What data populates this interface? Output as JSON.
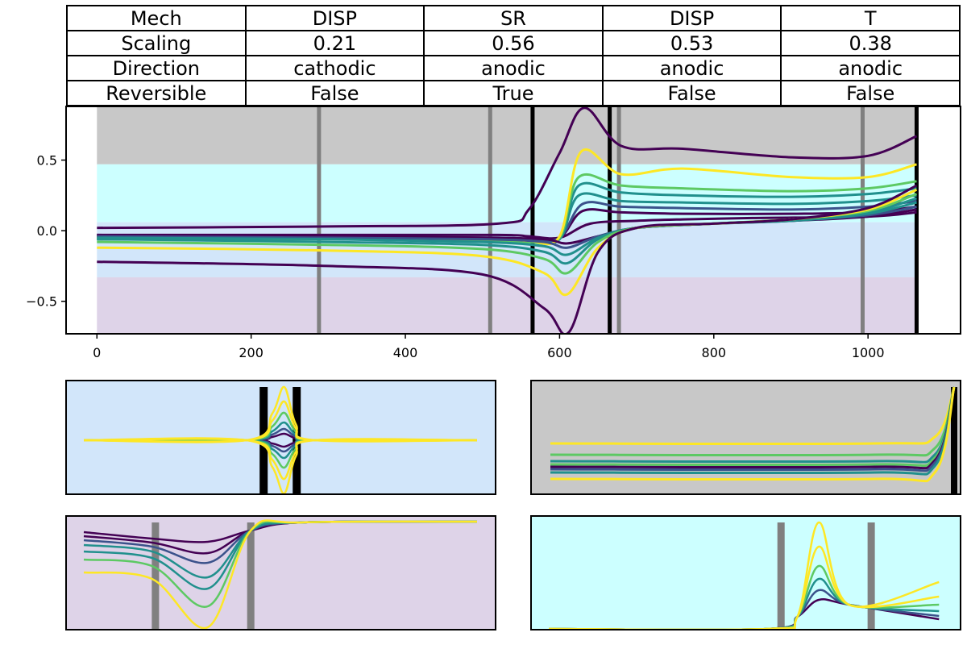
{
  "table": {
    "rows": [
      [
        "Mech",
        "DISP",
        "SR",
        "DISP",
        "T"
      ],
      [
        "Scaling",
        "0.21",
        "0.56",
        "0.53",
        "0.38"
      ],
      [
        "Direction",
        "cathodic",
        "anodic",
        "anodic",
        "anodic"
      ],
      [
        "Reversible",
        "False",
        "True",
        "False",
        "False"
      ]
    ]
  },
  "chart_data": [
    {
      "type": "line",
      "title": "",
      "xlabel": "",
      "ylabel": "",
      "xlim": [
        -40,
        1120
      ],
      "ylim": [
        -0.73,
        0.88
      ],
      "x_ticks": [
        0,
        200,
        400,
        600,
        800,
        1000
      ],
      "y_ticks": [
        -0.5,
        0.0,
        0.5
      ],
      "grid": false,
      "band_colors": [
        "#c8c8c8",
        "#ccffff",
        "#d2e6fa",
        "#ded3e8"
      ],
      "bands": [
        {
          "y0": 0.47,
          "y1": 0.88,
          "color": "#c8c8c8"
        },
        {
          "y0": 0.06,
          "y1": 0.47,
          "color": "#ccffff"
        },
        {
          "y0": -0.33,
          "y1": 0.06,
          "color": "#d2e6fa"
        },
        {
          "y0": -0.73,
          "y1": -0.33,
          "color": "#ded3e8"
        }
      ],
      "vlines_gray": [
        288,
        510,
        677,
        993
      ],
      "vlines_black": [
        565,
        665,
        1063
      ],
      "series_colors": [
        "#440154",
        "#3b528b",
        "#21908d",
        "#5dc963",
        "#fde725"
      ],
      "series": [
        {
          "x": [
            0,
            300,
            520,
            560,
            600,
            640,
            700,
            760,
            850,
            1000,
            1063
          ],
          "y": [
            -0.03,
            -0.03,
            -0.03,
            -0.04,
            -0.05,
            0.05,
            0.07,
            0.08,
            0.09,
            0.1,
            0.13
          ]
        },
        {
          "x": [
            0,
            300,
            520,
            560,
            600,
            630,
            680,
            760,
            900,
            1000,
            1063
          ],
          "y": [
            -0.04,
            -0.04,
            -0.05,
            -0.06,
            -0.05,
            0.14,
            0.13,
            0.12,
            0.12,
            0.13,
            0.17
          ]
        },
        {
          "x": [
            0,
            300,
            520,
            560,
            600,
            630,
            680,
            760,
            900,
            1000,
            1063
          ],
          "y": [
            -0.05,
            -0.05,
            -0.05,
            -0.06,
            -0.05,
            0.19,
            0.17,
            0.16,
            0.15,
            0.17,
            0.21
          ]
        },
        {
          "x": [
            0,
            300,
            520,
            560,
            600,
            625,
            680,
            760,
            900,
            1000,
            1063
          ],
          "y": [
            -0.05,
            -0.05,
            -0.06,
            -0.07,
            -0.06,
            0.25,
            0.21,
            0.2,
            0.19,
            0.21,
            0.25
          ]
        },
        {
          "x": [
            0,
            300,
            520,
            560,
            600,
            625,
            680,
            760,
            900,
            1000,
            1063
          ],
          "y": [
            -0.06,
            -0.06,
            -0.06,
            -0.07,
            -0.06,
            0.32,
            0.27,
            0.25,
            0.24,
            0.26,
            0.3
          ]
        },
        {
          "x": [
            0,
            300,
            520,
            560,
            600,
            625,
            680,
            760,
            900,
            1000,
            1063
          ],
          "y": [
            -0.06,
            -0.06,
            -0.07,
            -0.08,
            -0.05,
            0.38,
            0.32,
            0.3,
            0.28,
            0.3,
            0.35
          ]
        },
        {
          "x": [
            0,
            300,
            520,
            560,
            600,
            628,
            680,
            760,
            900,
            1000,
            1063
          ],
          "y": [
            -0.05,
            -0.05,
            -0.06,
            -0.07,
            -0.04,
            0.56,
            0.4,
            0.44,
            0.38,
            0.38,
            0.47
          ]
        },
        {
          "x": [
            0,
            300,
            520,
            560,
            600,
            632,
            680,
            760,
            900,
            1000,
            1063
          ],
          "y": [
            0.02,
            0.03,
            0.05,
            0.15,
            0.55,
            0.87,
            0.6,
            0.58,
            0.52,
            0.53,
            0.67
          ]
        },
        {
          "x": [
            0,
            300,
            500,
            580,
            610,
            650,
            700,
            800,
            900,
            1000,
            1063
          ],
          "y": [
            -0.03,
            -0.04,
            -0.05,
            -0.06,
            -0.09,
            -0.04,
            0.02,
            0.05,
            0.07,
            0.1,
            0.15
          ]
        },
        {
          "x": [
            0,
            300,
            500,
            580,
            610,
            650,
            700,
            800,
            900,
            1000,
            1063
          ],
          "y": [
            -0.04,
            -0.05,
            -0.06,
            -0.08,
            -0.12,
            -0.04,
            0.02,
            0.05,
            0.07,
            0.11,
            0.17
          ]
        },
        {
          "x": [
            0,
            300,
            500,
            580,
            610,
            650,
            700,
            800,
            900,
            1000,
            1063
          ],
          "y": [
            -0.05,
            -0.06,
            -0.08,
            -0.11,
            -0.17,
            -0.05,
            0.02,
            0.05,
            0.07,
            0.12,
            0.2
          ]
        },
        {
          "x": [
            0,
            300,
            500,
            580,
            610,
            650,
            700,
            800,
            900,
            1000,
            1063
          ],
          "y": [
            -0.06,
            -0.08,
            -0.1,
            -0.15,
            -0.23,
            -0.06,
            0.02,
            0.05,
            0.08,
            0.13,
            0.23
          ]
        },
        {
          "x": [
            0,
            300,
            500,
            580,
            610,
            650,
            700,
            800,
            900,
            1000,
            1063
          ],
          "y": [
            -0.08,
            -0.1,
            -0.13,
            -0.2,
            -0.3,
            -0.08,
            0.02,
            0.05,
            0.08,
            0.14,
            0.26
          ]
        },
        {
          "x": [
            0,
            300,
            500,
            580,
            610,
            650,
            700,
            800,
            900,
            1000,
            1063
          ],
          "y": [
            -0.12,
            -0.14,
            -0.18,
            -0.3,
            -0.45,
            -0.12,
            0.02,
            0.05,
            0.08,
            0.15,
            0.29
          ]
        },
        {
          "x": [
            0,
            300,
            500,
            580,
            612,
            650,
            700,
            800,
            900,
            1000,
            1063
          ],
          "y": [
            -0.22,
            -0.25,
            -0.31,
            -0.55,
            -0.72,
            -0.15,
            0.02,
            0.05,
            0.08,
            0.16,
            0.32
          ]
        }
      ]
    }
  ]
}
